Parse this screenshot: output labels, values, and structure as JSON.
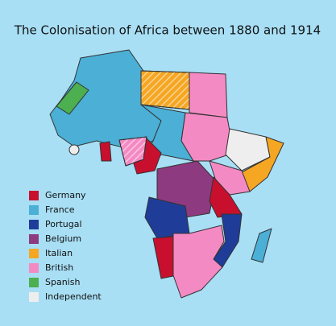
{
  "title": "The Colonisation of Africa between 1880 and 1914",
  "legend": [
    {
      "label": "Germany",
      "color": "#c8102e"
    },
    {
      "label": "France",
      "color": "#4bafd6"
    },
    {
      "label": "Portugal",
      "color": "#1f3c99"
    },
    {
      "label": "Belgium",
      "color": "#8e3a80"
    },
    {
      "label": "Italian",
      "color": "#f5a623"
    },
    {
      "label": "British",
      "color": "#f48ac4"
    },
    {
      "label": "Spanish",
      "color": "#4caf50"
    },
    {
      "label": "Independent",
      "color": "#eeeeee"
    }
  ]
}
